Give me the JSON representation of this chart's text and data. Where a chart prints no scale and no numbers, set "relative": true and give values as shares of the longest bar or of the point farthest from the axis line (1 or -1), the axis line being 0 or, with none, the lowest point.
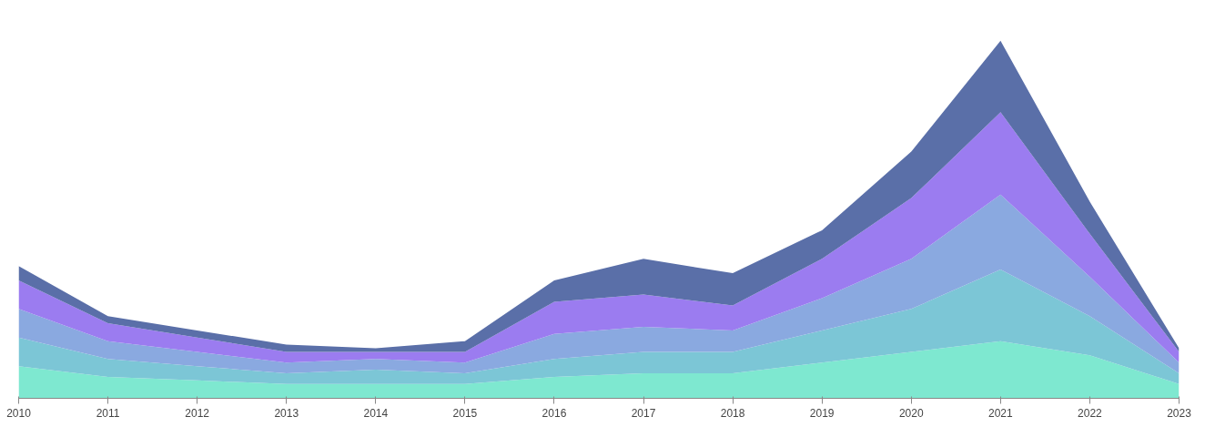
{
  "chart_data": {
    "type": "area",
    "stacked": true,
    "relative": true,
    "x": [
      2010,
      2011,
      2012,
      2013,
      2014,
      2015,
      2016,
      2017,
      2018,
      2019,
      2020,
      2021,
      2022,
      2023
    ],
    "xlim": [
      2010,
      2023
    ],
    "xticks": [
      2010,
      2011,
      2012,
      2013,
      2014,
      2015,
      2016,
      2017,
      2018,
      2019,
      2020,
      2021,
      2022,
      2023
    ],
    "grid": false,
    "series": [
      {
        "color": "#7ee8d0",
        "values": [
          0.09,
          0.06,
          0.05,
          0.04,
          0.04,
          0.04,
          0.06,
          0.07,
          0.07,
          0.1,
          0.13,
          0.16,
          0.12,
          0.04
        ]
      },
      {
        "color": "#7cc6d6",
        "values": [
          0.08,
          0.05,
          0.04,
          0.03,
          0.04,
          0.03,
          0.05,
          0.06,
          0.06,
          0.09,
          0.12,
          0.2,
          0.11,
          0.03
        ]
      },
      {
        "color": "#8aa9e0",
        "values": [
          0.08,
          0.05,
          0.04,
          0.03,
          0.03,
          0.03,
          0.07,
          0.07,
          0.06,
          0.09,
          0.14,
          0.21,
          0.11,
          0.03
        ]
      },
      {
        "color": "#9b7cf0",
        "values": [
          0.08,
          0.05,
          0.04,
          0.03,
          0.02,
          0.03,
          0.09,
          0.09,
          0.07,
          0.11,
          0.17,
          0.23,
          0.12,
          0.03
        ]
      },
      {
        "color": "#5a6fa8",
        "values": [
          0.04,
          0.02,
          0.02,
          0.02,
          0.01,
          0.03,
          0.06,
          0.1,
          0.09,
          0.08,
          0.13,
          0.2,
          0.09,
          0.01
        ]
      }
    ]
  }
}
